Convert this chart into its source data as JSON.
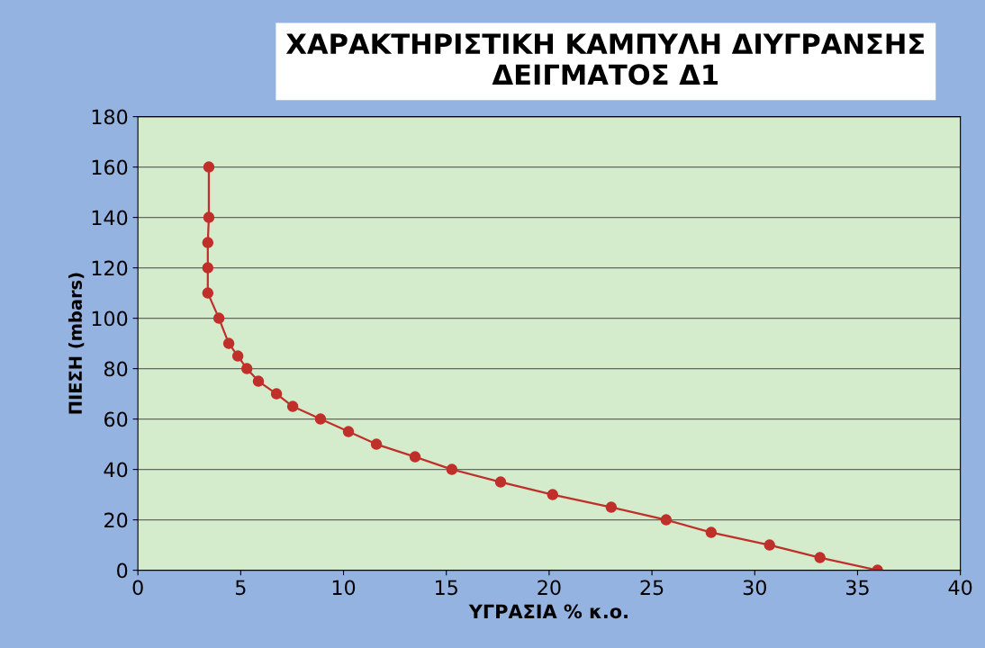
{
  "chart_data": {
    "type": "line",
    "title": "ΧΑΡΑΚΤΗΡΙΣΤΙΚΗ ΚΑΜΠΥΛΗ ΔΙΥΓΡΑΝΣΗΣ\nΔΕΙΓΜΑΤΟΣ Δ1",
    "xlabel": "ΥΓΡΑΣΙΑ % κ.ο.",
    "ylabel": "ΠΙΕΣΗ (mbars)",
    "series": [
      {
        "color": "#c0302a",
        "x": [
          3.45,
          3.45,
          3.4,
          3.4,
          3.4,
          3.94,
          4.42,
          4.86,
          5.3,
          5.86,
          6.74,
          7.53,
          8.88,
          10.24,
          11.6,
          13.48,
          15.27,
          17.64,
          20.17,
          23.02,
          25.69,
          27.88,
          30.72,
          33.17,
          35.97
        ],
        "values": [
          160,
          140,
          130,
          120,
          110,
          100,
          90,
          85,
          80,
          75,
          70,
          65,
          60,
          55,
          50,
          45,
          40,
          35,
          30,
          25,
          20,
          15,
          10,
          5,
          0
        ]
      }
    ],
    "xlim": [
      0,
      40
    ],
    "xticks": [
      0,
      5,
      10,
      15,
      20,
      25,
      30,
      35,
      40
    ],
    "ylim": [
      0,
      180
    ],
    "yticks": [
      0,
      20,
      40,
      60,
      80,
      100,
      120,
      140,
      160,
      180
    ],
    "grid": "y",
    "marker": "circle",
    "line_style": "solid"
  }
}
